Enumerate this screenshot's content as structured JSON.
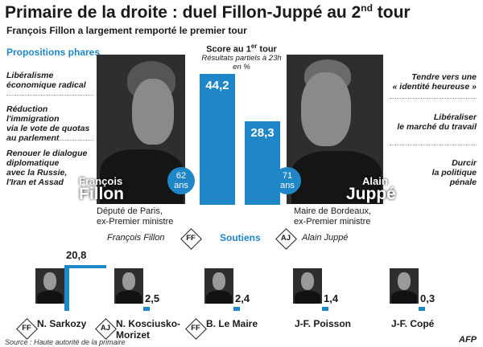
{
  "title_main": "Primaire de la droite : duel Fillon-Juppé au 2",
  "title_sup": "nd",
  "title_end": " tour",
  "subtitle": "François Fillon a largement remporté le premier tour",
  "propositions_label": "Propositions phares",
  "fillon": {
    "first_name": "François",
    "last_name": "Fillon",
    "age_value": "62",
    "age_unit": "ans",
    "desc_line1": "Député de Paris,",
    "desc_line2": "ex-Premier ministre",
    "props": [
      [
        "Libéralisme",
        "économique radical"
      ],
      [
        "Réduction l'immigration",
        "via le vote de quotas",
        "au parlement"
      ],
      [
        "Renouer le dialogue",
        "diplomatique",
        "avec la Russie,",
        "l'Iran et Assad"
      ]
    ],
    "name_short": "François Fillon",
    "badge": "FF"
  },
  "juppe": {
    "first_name": "Alain",
    "last_name": "Juppé",
    "age_value": "71",
    "age_unit": "ans",
    "desc_line1": "Maire de Bordeaux,",
    "desc_line2": "ex-Premier ministre",
    "props": [
      [
        "Tendre vers une",
        "« identité heureuse »"
      ],
      [
        "Libéraliser",
        "le marché du travail"
      ],
      [
        "Durcir",
        "la politique",
        "pénale"
      ]
    ],
    "name_short": "Alain Juppé",
    "badge": "AJ"
  },
  "score_header_main": "Score au 1",
  "score_header_sup": "er",
  "score_header_end": " tour",
  "score_note_line1": "Résultats partiels à 23h",
  "score_note_line2": "en %",
  "soutiens_label": "Soutiens",
  "chart_data": [
    {
      "type": "bar",
      "title": "Score au 1er tour",
      "subtitle": "Résultats partiels à 23h en %",
      "categories": [
        "François Fillon",
        "Alain Juppé"
      ],
      "values": [
        44.2,
        28.3
      ],
      "value_labels": [
        "44,2",
        "28,3"
      ]
    },
    {
      "type": "bar",
      "title": "Soutiens",
      "categories": [
        "N. Sarkozy",
        "N. Kosciusko-Morizet",
        "B. Le Maire",
        "J-F. Poisson",
        "J-F. Copé"
      ],
      "values": [
        20.8,
        2.5,
        2.4,
        1.4,
        0.3
      ],
      "value_labels": [
        "20,8",
        "2,5",
        "2,4",
        "1,4",
        "0,3"
      ],
      "supports": [
        "FF",
        "AJ",
        "FF",
        "",
        ""
      ],
      "name_lines": [
        [
          "N. Sarkozy"
        ],
        [
          "N. Kosciusko-",
          "Morizet"
        ],
        [
          "B. Le Maire"
        ],
        [
          "J-F. Poisson"
        ],
        [
          "J-F. Copé"
        ]
      ]
    }
  ],
  "source": "Source : Haute autorité de la primaire",
  "afp": "AFP",
  "colors": {
    "accent": "#1f86c8",
    "text": "#1a1a1a"
  }
}
